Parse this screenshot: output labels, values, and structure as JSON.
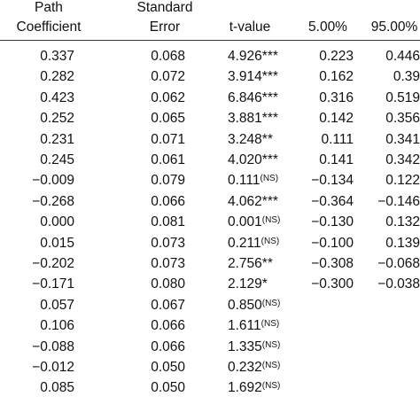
{
  "table": {
    "headers": [
      [
        "Path",
        "Coefficient"
      ],
      [
        "Standard",
        "Error"
      ],
      [
        "t-value"
      ],
      [
        "5.00%"
      ],
      [
        "95.00%"
      ]
    ],
    "rows": [
      {
        "coef": "0.337",
        "se": "0.068",
        "t": "4.926***",
        "lo": "0.223",
        "hi": "0.446"
      },
      {
        "coef": "0.282",
        "se": "0.072",
        "t": "3.914***",
        "lo": "0.162",
        "hi": "0.39"
      },
      {
        "coef": "0.423",
        "se": "0.062",
        "t": "6.846***",
        "lo": "0.316",
        "hi": "0.519"
      },
      {
        "coef": "0.252",
        "se": "0.065",
        "t": "3.881***",
        "lo": "0.142",
        "hi": "0.356"
      },
      {
        "coef": "0.231",
        "se": "0.071",
        "t": "3.248**",
        "lo": "0.111",
        "hi": "0.341"
      },
      {
        "coef": "0.245",
        "se": "0.061",
        "t": "4.020***",
        "lo": "0.141",
        "hi": "0.342"
      },
      {
        "coef": "−0.009",
        "se": "0.079",
        "t": "0.111",
        "sup": "(NS)",
        "lo": "−0.134",
        "hi": "0.122"
      },
      {
        "coef": "−0.268",
        "se": "0.066",
        "t": "4.062***",
        "lo": "−0.364",
        "hi": "−0.146"
      },
      {
        "coef": "0.000",
        "se": "0.081",
        "t": "0.001",
        "sup": "(NS)",
        "lo": "−0.130",
        "hi": "0.132"
      },
      {
        "coef": "0.015",
        "se": "0.073",
        "t": "0.211",
        "sup": "(NS)",
        "lo": "−0.100",
        "hi": "0.139"
      },
      {
        "coef": "−0.202",
        "se": "0.073",
        "t": "2.756**",
        "lo": "−0.308",
        "hi": "−0.068"
      },
      {
        "coef": "−0.171",
        "se": "0.080",
        "t": "2.129*",
        "lo": "−0.300",
        "hi": "−0.038"
      },
      {
        "coef": "0.057",
        "se": "0.067",
        "t": "0.850",
        "sup": "(NS)"
      },
      {
        "coef": "0.106",
        "se": "0.066",
        "t": "1.611",
        "sup": "(NS)"
      },
      {
        "coef": "−0.088",
        "se": "0.066",
        "t": "1.335",
        "sup": "(NS)"
      },
      {
        "coef": "−0.012",
        "se": "0.050",
        "t": "0.232",
        "sup": "(NS)"
      },
      {
        "coef": "0.085",
        "se": "0.050",
        "t": "1.692",
        "sup": "(NS)"
      }
    ]
  }
}
